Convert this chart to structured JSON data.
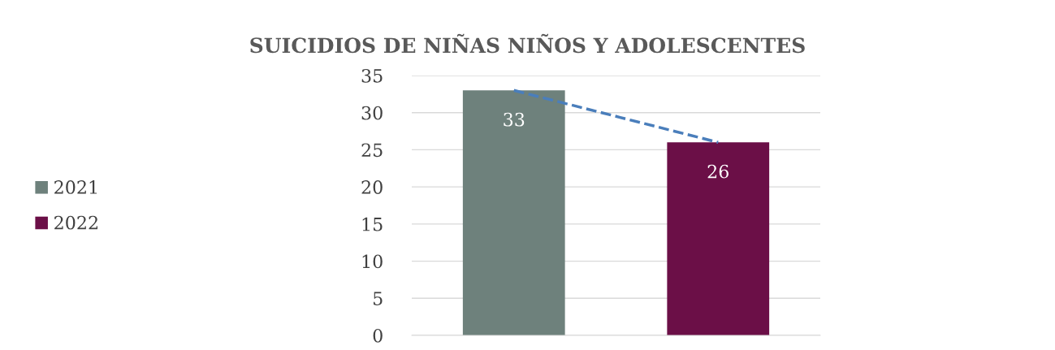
{
  "chart_data": {
    "type": "bar",
    "title": "SUICIDIOS DE NIÑAS NIÑOS Y ADOLESCENTES",
    "categories": [
      null,
      null
    ],
    "series": [
      {
        "name": "2021",
        "color": "#6e817c",
        "values": [
          33,
          null
        ],
        "value_labels": [
          "33",
          null
        ]
      },
      {
        "name": "2022",
        "color": "#6b0f47",
        "values": [
          null,
          26
        ],
        "value_labels": [
          null,
          "26"
        ]
      },
      {
        "type": "line",
        "color": "#4a7ebb",
        "values": [
          33,
          26
        ],
        "line_style": "dashed",
        "marker": "none"
      }
    ],
    "ylim": [
      0,
      35
    ],
    "yticks": [
      0,
      5,
      10,
      15,
      20,
      25,
      30,
      35
    ],
    "grid": "y",
    "legend": "left"
  }
}
